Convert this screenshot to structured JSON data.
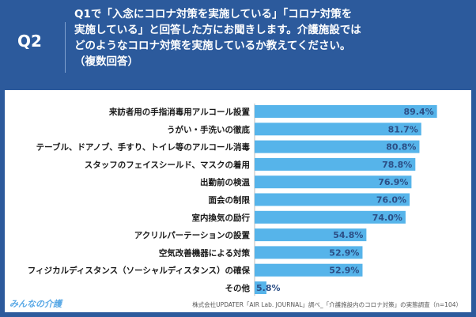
{
  "header": {
    "q_label": "Q2",
    "question": "Q1で「入念にコロナ対策を実施している」「コロナ対策を\n実施している」と回答した方にお聞きします。介護施設では\nどのようなコロナ対策を実施しているか教えてください。\n（複数回答）"
  },
  "colors": {
    "bar": "#56b4ea",
    "header_bg": "#2c5a9c",
    "value_text": "#2c4f86"
  },
  "chart_data": {
    "type": "bar",
    "orientation": "horizontal",
    "title": "",
    "xlabel": "",
    "ylabel": "",
    "xlim": [
      0,
      100
    ],
    "grid": false,
    "categories": [
      "来訪者用の手指消毒用アルコール設置",
      "うがい・手洗いの徹底",
      "テーブル、ドアノブ、手すり、トイレ等のアルコール消毒",
      "スタッフのフェイスシールド、マスクの着用",
      "出勤前の検温",
      "面会の制限",
      "室内換気の励行",
      "アクリルパーテーションの設置",
      "空気改善機器による対策",
      "フィジカルディスタンス（ソーシャルディスタンス）の確保",
      "その他"
    ],
    "values": [
      89.4,
      81.7,
      80.8,
      78.8,
      76.9,
      76.0,
      74.0,
      54.8,
      52.9,
      52.9,
      5.8
    ],
    "value_labels": [
      "89.4%",
      "81.7%",
      "80.8%",
      "78.8%",
      "76.9%",
      "76.0%",
      "74.0%",
      "54.8%",
      "52.9%",
      "52.9%",
      "5.8%"
    ]
  },
  "footer": {
    "logo": "みんなの介護",
    "source": "株式会社UPDATER「AIR Lab. JOURNAL」調べ_「介護施設内のコロナ対策」の実態調査（n=104）"
  }
}
